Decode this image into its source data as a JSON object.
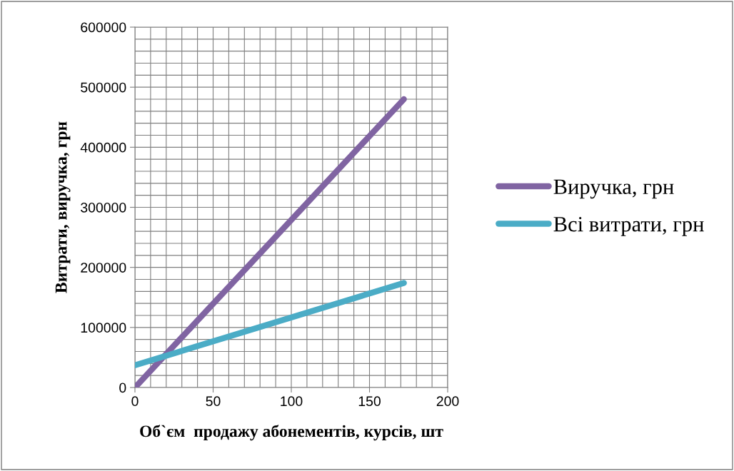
{
  "chart_data": {
    "type": "line",
    "xlabel": "Об`єм  продажу абонементів, курсів, шт",
    "ylabel": "Витрати, виручка, грн",
    "x": [
      0,
      172
    ],
    "series": [
      {
        "name": "Виручка, грн",
        "color": "#8064a2",
        "values": [
          0,
          480000
        ]
      },
      {
        "name": "Всі витрати, грн",
        "color": "#4bacc6",
        "values": [
          37000,
          174000
        ]
      }
    ],
    "xlim": [
      0,
      200
    ],
    "xticks": [
      0,
      50,
      100,
      150,
      200
    ],
    "ylim": [
      0,
      600000
    ],
    "yticks": [
      0,
      100000,
      200000,
      300000,
      400000,
      500000,
      600000
    ],
    "grid": true,
    "legend": "right",
    "marker": "none",
    "line_style": "solid"
  }
}
